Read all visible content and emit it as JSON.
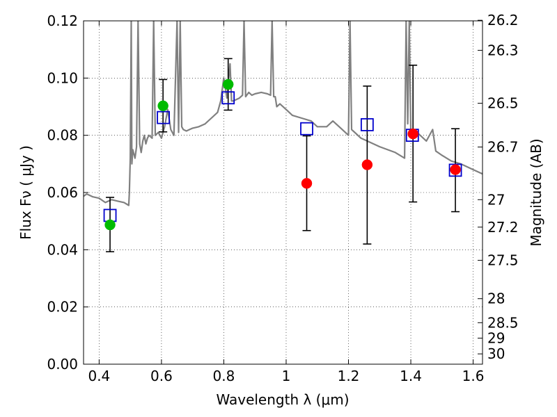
{
  "chart_data": {
    "type": "scatter",
    "xlabel": "Wavelength  λ (μm)",
    "ylabel": "Flux  Fν  ( μJy )",
    "y2label": "Magnitude (AB)",
    "xlim": [
      0.35,
      1.63
    ],
    "ylim": [
      0.0,
      0.12
    ],
    "grid": true,
    "x_ticks": [
      0.4,
      0.6,
      0.8,
      1.0,
      1.2,
      1.4,
      1.6
    ],
    "x_tick_labels": [
      "0.4",
      "0.6",
      "0.8",
      "1",
      "1.2",
      "1.4",
      "1.6"
    ],
    "y_ticks": [
      0.0,
      0.02,
      0.04,
      0.06,
      0.08,
      0.1,
      0.12
    ],
    "y_tick_labels": [
      "0.00",
      "0.02",
      "0.04",
      "0.06",
      "0.08",
      "0.10",
      "0.12"
    ],
    "mag_ticks": [
      {
        "label": "26.2",
        "flux": 0.1202
      },
      {
        "label": "26.3",
        "flux": 0.1097
      },
      {
        "label": "26.5",
        "flux": 0.0912
      },
      {
        "label": "26.7",
        "flux": 0.0759
      },
      {
        "label": "27",
        "flux": 0.0575
      },
      {
        "label": "27.2",
        "flux": 0.0479
      },
      {
        "label": "27.5",
        "flux": 0.0363
      },
      {
        "label": "28",
        "flux": 0.0229
      },
      {
        "label": "28.5",
        "flux": 0.0145
      },
      {
        "label": "29",
        "flux": 0.0091
      },
      {
        "label": "30",
        "flux": 0.0036
      }
    ],
    "observed_points": [
      {
        "x": 0.435,
        "y": 0.0487,
        "yerr_low": 0.0393,
        "yerr_high": 0.0583,
        "color": "#00bb00"
      },
      {
        "x": 0.605,
        "y": 0.0903,
        "yerr_low": 0.0812,
        "yerr_high": 0.0995,
        "color": "#00bb00"
      },
      {
        "x": 0.814,
        "y": 0.0978,
        "yerr_low": 0.0888,
        "yerr_high": 0.1068,
        "color": "#00bb00"
      },
      {
        "x": 1.066,
        "y": 0.0632,
        "yerr_low": 0.0467,
        "yerr_high": 0.0798,
        "color": "#ff0000"
      },
      {
        "x": 1.26,
        "y": 0.0697,
        "yerr_low": 0.042,
        "yerr_high": 0.0972,
        "color": "#ff0000"
      },
      {
        "x": 1.407,
        "y": 0.0805,
        "yerr_low": 0.0567,
        "yerr_high": 0.1045,
        "color": "#ff0000"
      },
      {
        "x": 1.543,
        "y": 0.068,
        "yerr_low": 0.0533,
        "yerr_high": 0.0823,
        "color": "#ff0000"
      }
    ],
    "model_points": [
      {
        "x": 0.435,
        "y": 0.052
      },
      {
        "x": 0.606,
        "y": 0.0862
      },
      {
        "x": 0.814,
        "y": 0.0931
      },
      {
        "x": 1.066,
        "y": 0.0823
      },
      {
        "x": 1.26,
        "y": 0.0837
      },
      {
        "x": 1.405,
        "y": 0.08
      },
      {
        "x": 1.543,
        "y": 0.0678
      }
    ],
    "model_spectrum": {
      "color": "#808080",
      "x": [
        0.35,
        0.36,
        0.38,
        0.4,
        0.42,
        0.44,
        0.46,
        0.48,
        0.495,
        0.497,
        0.5,
        0.503,
        0.505,
        0.508,
        0.515,
        0.52,
        0.525,
        0.53,
        0.535,
        0.54,
        0.545,
        0.55,
        0.555,
        0.56,
        0.57,
        0.575,
        0.58,
        0.59,
        0.6,
        0.61,
        0.62,
        0.63,
        0.64,
        0.65,
        0.655,
        0.66,
        0.665,
        0.67,
        0.68,
        0.69,
        0.7,
        0.72,
        0.74,
        0.76,
        0.78,
        0.79,
        0.8,
        0.81,
        0.82,
        0.825,
        0.83,
        0.84,
        0.85,
        0.86,
        0.865,
        0.87,
        0.88,
        0.89,
        0.9,
        0.92,
        0.94,
        0.95,
        0.955,
        0.96,
        0.965,
        0.97,
        0.98,
        1.0,
        1.02,
        1.05,
        1.08,
        1.1,
        1.13,
        1.15,
        1.18,
        1.2,
        1.205,
        1.21,
        1.22,
        1.24,
        1.26,
        1.3,
        1.35,
        1.38,
        1.385,
        1.39,
        1.395,
        1.4,
        1.42,
        1.45,
        1.47,
        1.48,
        1.5,
        1.53,
        1.56,
        1.58,
        1.6,
        1.63
      ],
      "y": [
        0.0587,
        0.0595,
        0.0585,
        0.058,
        0.0565,
        0.0575,
        0.057,
        0.0565,
        0.0555,
        0.06,
        0.072,
        0.12,
        0.07,
        0.075,
        0.072,
        0.076,
        0.12,
        0.077,
        0.074,
        0.078,
        0.08,
        0.077,
        0.079,
        0.08,
        0.079,
        0.12,
        0.08,
        0.081,
        0.079,
        0.083,
        0.089,
        0.082,
        0.08,
        0.12,
        0.081,
        0.12,
        0.083,
        0.082,
        0.0815,
        0.082,
        0.0825,
        0.083,
        0.084,
        0.086,
        0.088,
        0.092,
        0.1,
        0.093,
        0.105,
        0.092,
        0.092,
        0.0925,
        0.093,
        0.094,
        0.12,
        0.0935,
        0.095,
        0.094,
        0.0945,
        0.095,
        0.0945,
        0.094,
        0.12,
        0.0935,
        0.0935,
        0.09,
        0.091,
        0.089,
        0.087,
        0.086,
        0.085,
        0.083,
        0.083,
        0.085,
        0.082,
        0.08,
        0.12,
        0.082,
        0.081,
        0.079,
        0.078,
        0.076,
        0.074,
        0.072,
        0.12,
        0.084,
        0.12,
        0.082,
        0.081,
        0.078,
        0.082,
        0.0745,
        0.073,
        0.071,
        0.07,
        0.069,
        0.068,
        0.0665
      ]
    }
  }
}
